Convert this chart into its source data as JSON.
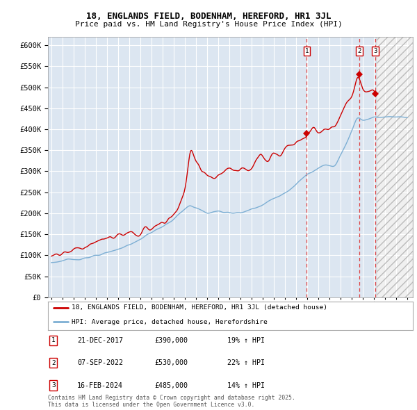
{
  "title1": "18, ENGLANDS FIELD, BODENHAM, HEREFORD, HR1 3JL",
  "title2": "Price paid vs. HM Land Registry's House Price Index (HPI)",
  "ylabel_values": [
    0,
    50000,
    100000,
    150000,
    200000,
    250000,
    300000,
    350000,
    400000,
    450000,
    500000,
    550000,
    600000
  ],
  "ylim": [
    0,
    620000
  ],
  "xlim_start": 1994.7,
  "xlim_end": 2027.5,
  "background_color": "#ffffff",
  "plot_bg_color": "#dce6f1",
  "grid_color": "#ffffff",
  "red_line_color": "#cc0000",
  "blue_line_color": "#7dafd4",
  "sale_marker_color": "#cc0000",
  "hatch_bg_color": "#e8e8e8",
  "legend1": "18, ENGLANDS FIELD, BODENHAM, HEREFORD, HR1 3JL (detached house)",
  "legend2": "HPI: Average price, detached house, Herefordshire",
  "sale_dates": [
    2017.97,
    2022.68,
    2024.12
  ],
  "sale_prices": [
    390000,
    530000,
    485000
  ],
  "sale_labels": [
    "1",
    "2",
    "3"
  ],
  "sale_info": [
    {
      "label": "1",
      "date": "21-DEC-2017",
      "price": "£390,000",
      "hpi": "19% ↑ HPI"
    },
    {
      "label": "2",
      "date": "07-SEP-2022",
      "price": "£530,000",
      "hpi": "22% ↑ HPI"
    },
    {
      "label": "3",
      "date": "16-FEB-2024",
      "price": "£485,000",
      "hpi": "14% ↑ HPI"
    }
  ],
  "footer": "Contains HM Land Registry data © Crown copyright and database right 2025.\nThis data is licensed under the Open Government Licence v3.0.",
  "hatch_start": 2024.25,
  "data_end_red": 2024.25,
  "data_end_blue": 2027.0
}
